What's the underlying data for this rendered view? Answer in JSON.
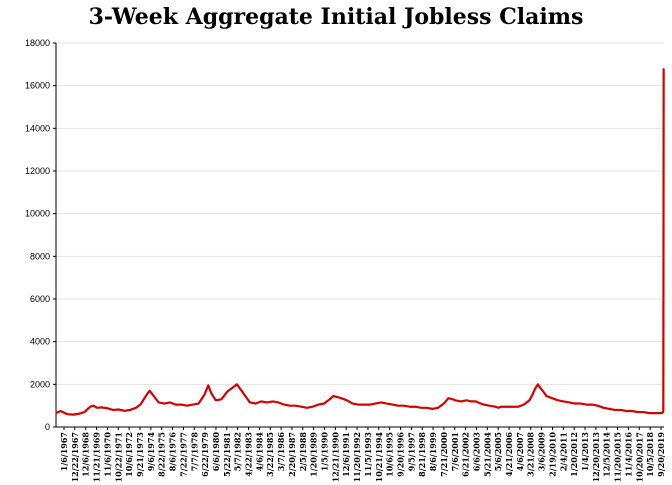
{
  "chart_data": {
    "type": "line",
    "title": "3-Week Aggregate Initial Jobless Claims",
    "xlabel": "",
    "ylabel": "",
    "ylim": [
      0,
      18000
    ],
    "yticks": [
      0,
      2000,
      4000,
      6000,
      8000,
      10000,
      12000,
      14000,
      16000,
      18000
    ],
    "grid": true,
    "legend": "none",
    "line_color": "#d40000",
    "x_tick_labels": [
      "1/6/1967",
      "12/22/1967",
      "12/6/1968",
      "11/21/1969",
      "11/6/1970",
      "10/22/1971",
      "10/6/1972",
      "9/21/1973",
      "9/6/1974",
      "8/22/1975",
      "8/6/1976",
      "7/22/1977",
      "7/7/1978",
      "6/22/1979",
      "6/6/1980",
      "5/22/1981",
      "5/7/1982",
      "4/22/1983",
      "4/6/1984",
      "3/22/1985",
      "3/7/1986",
      "2/20/1987",
      "2/5/1988",
      "1/20/1989",
      "1/5/1990",
      "12/21/1990",
      "12/6/1991",
      "11/20/1992",
      "11/5/1993",
      "10/21/1994",
      "10/6/1995",
      "9/20/1996",
      "9/5/1997",
      "8/21/1998",
      "8/6/1999",
      "7/21/2000",
      "7/6/2001",
      "6/21/2002",
      "6/6/2003",
      "5/21/2004",
      "5/6/2005",
      "4/21/2006",
      "4/6/2007",
      "3/21/2008",
      "3/6/2009",
      "2/19/2010",
      "2/4/2011",
      "1/20/2012",
      "1/4/2013",
      "12/20/2013",
      "12/5/2014",
      "11/20/2015",
      "11/4/2016",
      "10/20/2017",
      "10/5/2018",
      "9/20/2019"
    ],
    "series": [
      {
        "x": [
          1967.0,
          1967.4,
          1968.0,
          1968.5,
          1969.0,
          1969.5,
          1970.0,
          1970.3,
          1970.6,
          1971.0,
          1971.5,
          1972.0,
          1972.5,
          1973.0,
          1973.5,
          1974.0,
          1974.4,
          1974.7,
          1975.0,
          1975.2,
          1975.5,
          1976.0,
          1976.5,
          1977.0,
          1977.5,
          1978.0,
          1978.5,
          1979.0,
          1979.5,
          1980.0,
          1980.35,
          1980.6,
          1981.0,
          1981.5,
          1982.0,
          1982.5,
          1982.85,
          1983.2,
          1983.6,
          1984.0,
          1984.5,
          1985.0,
          1985.5,
          1986.0,
          1986.5,
          1987.0,
          1987.5,
          1988.0,
          1988.5,
          1989.0,
          1989.5,
          1990.0,
          1990.5,
          1991.0,
          1991.3,
          1991.7,
          1992.0,
          1992.5,
          1993.0,
          1993.5,
          1994.0,
          1994.5,
          1995.0,
          1995.5,
          1996.0,
          1996.5,
          1997.0,
          1997.5,
          1998.0,
          1998.5,
          1999.0,
          1999.5,
          2000.0,
          2000.5,
          2001.0,
          2001.4,
          2001.8,
          2002.0,
          2002.5,
          2003.0,
          2003.4,
          2003.8,
          2004.0,
          2004.5,
          2005.0,
          2005.5,
          2005.8,
          2006.0,
          2006.5,
          2007.0,
          2007.5,
          2008.0,
          2008.5,
          2008.8,
          2009.0,
          2009.25,
          2009.5,
          2009.8,
          2010.0,
          2010.5,
          2011.0,
          2011.5,
          2012.0,
          2012.5,
          2013.0,
          2013.5,
          2014.0,
          2014.5,
          2015.0,
          2015.5,
          2016.0,
          2016.5,
          2017.0,
          2017.5,
          2018.0,
          2018.5,
          2019.0,
          2019.5,
          2020.0,
          2020.12,
          2020.22,
          2020.24,
          2020.27
        ],
        "y": [
          650,
          750,
          600,
          580,
          620,
          700,
          950,
          1000,
          900,
          920,
          880,
          800,
          820,
          760,
          800,
          900,
          1050,
          1300,
          1550,
          1700,
          1500,
          1150,
          1100,
          1150,
          1050,
          1050,
          1000,
          1050,
          1100,
          1500,
          1950,
          1600,
          1250,
          1300,
          1650,
          1850,
          2000,
          1750,
          1450,
          1150,
          1100,
          1200,
          1150,
          1200,
          1150,
          1050,
          1000,
          1000,
          950,
          900,
          950,
          1050,
          1100,
          1300,
          1450,
          1400,
          1350,
          1250,
          1100,
          1050,
          1050,
          1050,
          1100,
          1150,
          1100,
          1050,
          1000,
          1000,
          950,
          950,
          900,
          900,
          850,
          900,
          1100,
          1350,
          1300,
          1250,
          1200,
          1250,
          1200,
          1200,
          1150,
          1050,
          1000,
          950,
          900,
          950,
          950,
          950,
          950,
          1050,
          1250,
          1550,
          1800,
          2000,
          1800,
          1600,
          1450,
          1350,
          1250,
          1200,
          1150,
          1100,
          1100,
          1050,
          1050,
          1000,
          900,
          850,
          800,
          800,
          750,
          750,
          700,
          700,
          650,
          650,
          650,
          660,
          700,
          800,
          16800
        ]
      }
    ]
  }
}
